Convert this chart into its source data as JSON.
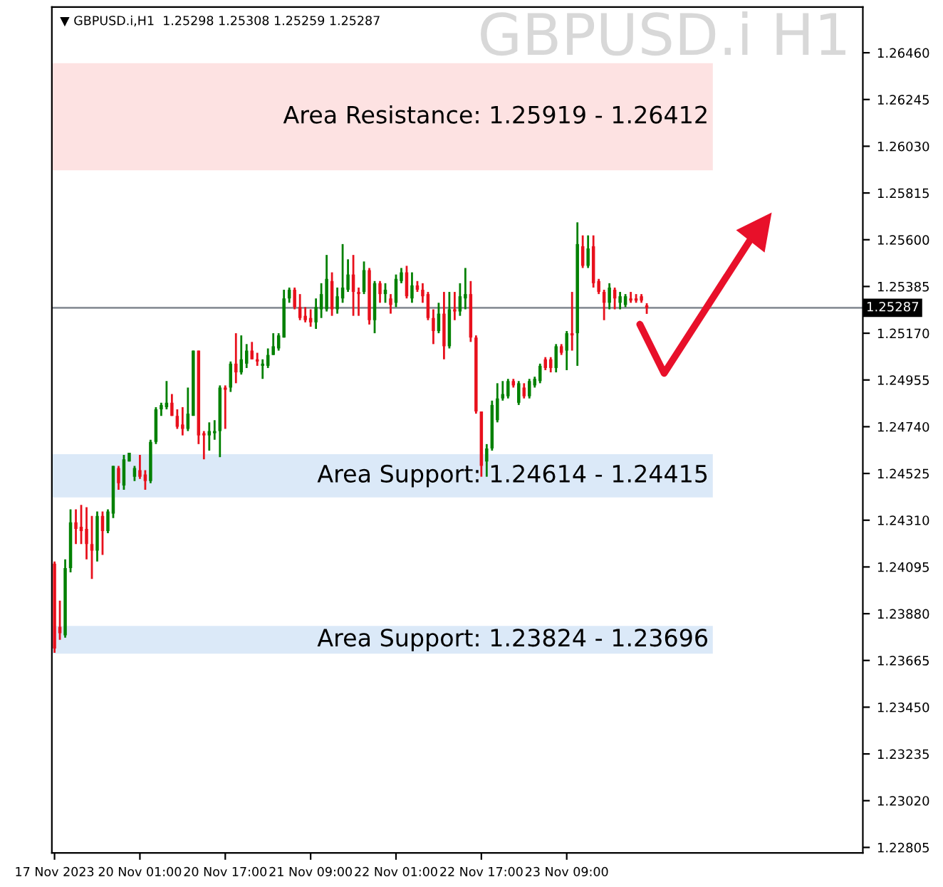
{
  "chart_data": {
    "type": "candlestick",
    "title": "GBPUSD.i H1",
    "subtitle": "▼ GBPUSD.i,H1  1.25298 1.25308 1.25259 1.25287",
    "categories": [
      "17 Nov 2023",
      null,
      null,
      null,
      null,
      null,
      null,
      null,
      null,
      null,
      null,
      null,
      null,
      null,
      null,
      null,
      "20 Nov 01:00",
      null,
      null,
      null,
      null,
      null,
      null,
      null,
      null,
      null,
      null,
      null,
      null,
      null,
      null,
      null,
      "20 Nov 17:00",
      null,
      null,
      null,
      null,
      null,
      null,
      null,
      null,
      null,
      null,
      null,
      null,
      null,
      null,
      null,
      "21 Nov 09:00",
      null,
      null,
      null,
      null,
      null,
      null,
      null,
      null,
      null,
      null,
      null,
      null,
      null,
      null,
      null,
      "22 Nov 01:00",
      null,
      null,
      null,
      null,
      null,
      null,
      null,
      null,
      null,
      null,
      null,
      null,
      null,
      null,
      null,
      "22 Nov 17:00",
      null,
      null,
      null,
      null,
      null,
      null,
      null,
      null,
      null,
      null,
      null,
      null,
      null,
      null,
      null,
      "23 Nov 09:00",
      null,
      null,
      null,
      null,
      null,
      null,
      null,
      null,
      null,
      null,
      null,
      null,
      null,
      null,
      null,
      null,
      null,
      null,
      null,
      null,
      null,
      null,
      null,
      null,
      null,
      null,
      null,
      null,
      null,
      null,
      null,
      null,
      null,
      null,
      null,
      null,
      null,
      null,
      null,
      null,
      null,
      null,
      null,
      null,
      null,
      null,
      null,
      null,
      null,
      null,
      null,
      null,
      null,
      null,
      null
    ],
    "ohlc": [
      [
        1.2411,
        1.2412,
        1.237,
        1.2372
      ],
      [
        1.2382,
        1.2394,
        1.2376,
        1.2379
      ],
      [
        1.2378,
        1.2413,
        1.2377,
        1.2409
      ],
      [
        1.2409,
        1.2436,
        1.2407,
        1.243
      ],
      [
        1.243,
        1.2436,
        1.242,
        1.2427
      ],
      [
        1.2428,
        1.2438,
        1.242,
        1.2426
      ],
      [
        1.2427,
        1.2437,
        1.2413,
        1.242
      ],
      [
        1.242,
        1.2433,
        1.2404,
        1.2417
      ],
      [
        1.2417,
        1.2435,
        1.2412,
        1.2433
      ],
      [
        1.2433,
        1.2435,
        1.2415,
        1.2426
      ],
      [
        1.2426,
        1.2436,
        1.2425,
        1.2435
      ],
      [
        1.2434,
        1.2456,
        1.2432,
        1.2456
      ],
      [
        1.2455,
        1.2456,
        1.2445,
        1.2448
      ],
      [
        1.2447,
        1.2461,
        1.2445,
        1.2459
      ],
      [
        1.2458,
        1.2462,
        1.2458,
        1.2462
      ],
      [
        1.2451,
        1.2456,
        1.2449,
        1.2455
      ],
      [
        1.2454,
        1.2461,
        1.245,
        1.2451
      ],
      [
        1.2452,
        1.2454,
        1.2445,
        1.2449
      ],
      [
        1.2449,
        1.2468,
        1.2448,
        1.2467
      ],
      [
        1.2467,
        1.2483,
        1.2466,
        1.2482
      ],
      [
        1.2482,
        1.2485,
        1.2479,
        1.2484
      ],
      [
        1.2483,
        1.2495,
        1.2482,
        1.2485
      ],
      [
        1.2485,
        1.2489,
        1.2479,
        1.2479
      ],
      [
        1.2479,
        1.2482,
        1.2473,
        1.2474
      ],
      [
        1.2475,
        1.2483,
        1.247,
        1.2473
      ],
      [
        1.2473,
        1.2492,
        1.2472,
        1.248
      ],
      [
        1.2479,
        1.2509,
        1.2479,
        1.2509
      ],
      [
        1.2509,
        1.2509,
        1.2466,
        1.247
      ],
      [
        1.2471,
        1.2472,
        1.2459,
        1.247
      ],
      [
        1.247,
        1.2476,
        1.2463,
        1.2472
      ],
      [
        1.2471,
        1.2477,
        1.2468,
        1.2472
      ],
      [
        1.2472,
        1.2493,
        1.246,
        1.2492
      ],
      [
        1.2492,
        1.2493,
        1.2473,
        1.2491
      ],
      [
        1.2492,
        1.2504,
        1.249,
        1.2503
      ],
      [
        1.2503,
        1.2517,
        1.2494,
        1.2499
      ],
      [
        1.2499,
        1.2516,
        1.2498,
        1.2505
      ],
      [
        1.2503,
        1.2512,
        1.2501,
        1.2509
      ],
      [
        1.2509,
        1.2513,
        1.2505,
        1.2505
      ],
      [
        1.2505,
        1.2508,
        1.2502,
        1.2504
      ],
      [
        1.2502,
        1.2505,
        1.2496,
        1.2503
      ],
      [
        1.2502,
        1.251,
        1.2501,
        1.2507
      ],
      [
        1.2507,
        1.2517,
        1.2507,
        1.2511
      ],
      [
        1.251,
        1.2517,
        1.2509,
        1.2516
      ],
      [
        1.2515,
        1.2537,
        1.2515,
        1.2533
      ],
      [
        1.2533,
        1.2538,
        1.2531,
        1.2537
      ],
      [
        1.2537,
        1.2538,
        1.2528,
        1.2529
      ],
      [
        1.2529,
        1.2535,
        1.2523,
        1.2524
      ],
      [
        1.2525,
        1.2529,
        1.2522,
        1.2523
      ],
      [
        1.2524,
        1.2528,
        1.252,
        1.2522
      ],
      [
        1.2522,
        1.2533,
        1.2519,
        1.2529
      ],
      [
        1.2528,
        1.254,
        1.2524,
        1.2535
      ],
      [
        1.2528,
        1.2553,
        1.2527,
        1.2542
      ],
      [
        1.2541,
        1.2545,
        1.2525,
        1.2528
      ],
      [
        1.2528,
        1.2538,
        1.2526,
        1.2534
      ],
      [
        1.2533,
        1.2558,
        1.2531,
        1.2538
      ],
      [
        1.2537,
        1.2551,
        1.2536,
        1.2544
      ],
      [
        1.2544,
        1.2553,
        1.2525,
        1.2536
      ],
      [
        1.2536,
        1.2538,
        1.2525,
        1.2535
      ],
      [
        1.2536,
        1.255,
        1.2535,
        1.2546
      ],
      [
        1.2546,
        1.2547,
        1.2521,
        1.2523
      ],
      [
        1.2523,
        1.2541,
        1.2517,
        1.254
      ],
      [
        1.254,
        1.2541,
        1.2531,
        1.2535
      ],
      [
        1.2535,
        1.254,
        1.2531,
        1.2537
      ],
      [
        1.2533,
        1.2535,
        1.2526,
        1.253
      ],
      [
        1.2531,
        1.2544,
        1.2529,
        1.2542
      ],
      [
        1.2541,
        1.2547,
        1.254,
        1.2545
      ],
      [
        1.2545,
        1.2548,
        1.2533,
        1.2534
      ],
      [
        1.2533,
        1.2545,
        1.2531,
        1.2539
      ],
      [
        1.2539,
        1.2541,
        1.2536,
        1.2537
      ],
      [
        1.2537,
        1.254,
        1.2531,
        1.2534
      ],
      [
        1.2535,
        1.2536,
        1.2523,
        1.2524
      ],
      [
        1.2524,
        1.2528,
        1.2512,
        1.2518
      ],
      [
        1.2518,
        1.2531,
        1.2517,
        1.2526
      ],
      [
        1.2526,
        1.2536,
        1.2505,
        1.2511
      ],
      [
        1.2511,
        1.2536,
        1.251,
        1.2528
      ],
      [
        1.2528,
        1.2536,
        1.2523,
        1.2527
      ],
      [
        1.2527,
        1.254,
        1.2525,
        1.2534
      ],
      [
        1.2533,
        1.2547,
        1.2528,
        1.2535
      ],
      [
        1.2535,
        1.2541,
        1.2513,
        1.2515
      ],
      [
        1.2515,
        1.2516,
        1.248,
        1.2481
      ],
      [
        1.2481,
        1.2481,
        1.2451,
        1.2456
      ],
      [
        1.2458,
        1.2466,
        1.2451,
        1.2464
      ],
      [
        1.2464,
        1.2486,
        1.2463,
        1.2484
      ],
      [
        1.2477,
        1.2494,
        1.2476,
        1.2487
      ],
      [
        1.2487,
        1.2495,
        1.2486,
        1.2489
      ],
      [
        1.2488,
        1.2496,
        1.2487,
        1.2495
      ],
      [
        1.2495,
        1.2496,
        1.2492,
        1.2493
      ],
      [
        1.2485,
        1.2495,
        1.2484,
        1.2494
      ],
      [
        1.2492,
        1.2494,
        1.2487,
        1.2488
      ],
      [
        1.2488,
        1.2496,
        1.2487,
        1.2495
      ],
      [
        1.2493,
        1.2497,
        1.2492,
        1.2496
      ],
      [
        1.2495,
        1.2503,
        1.2494,
        1.2502
      ],
      [
        1.2505,
        1.2506,
        1.25,
        1.2501
      ],
      [
        1.2505,
        1.2506,
        1.2499,
        1.2501
      ],
      [
        1.2501,
        1.2512,
        1.2499,
        1.2511
      ],
      [
        1.2511,
        1.2512,
        1.2507,
        1.2508
      ],
      [
        1.2509,
        1.2518,
        1.25,
        1.2517
      ],
      [
        1.2517,
        1.2536,
        1.2509,
        1.2516
      ],
      [
        1.2517,
        1.2568,
        1.2502,
        1.2558
      ],
      [
        1.2557,
        1.2562,
        1.2547,
        1.2548
      ],
      [
        1.2548,
        1.2562,
        1.2547,
        1.2556
      ],
      [
        1.2557,
        1.2562,
        1.2538,
        1.254
      ],
      [
        1.2541,
        1.2542,
        1.2535,
        1.2536
      ],
      [
        1.2536,
        1.2537,
        1.2523,
        1.2531
      ],
      [
        1.2531,
        1.254,
        1.2528,
        1.2538
      ],
      [
        1.2537,
        1.2538,
        1.2528,
        1.2533
      ],
      [
        1.2531,
        1.2536,
        1.2528,
        1.2534
      ],
      [
        1.253,
        1.2535,
        1.2529,
        1.2534
      ],
      [
        1.2533,
        1.2536,
        1.2531,
        1.2532
      ],
      [
        1.2533,
        1.2535,
        1.2531,
        1.2532
      ],
      [
        1.2534,
        1.2535,
        1.2531,
        1.2532
      ],
      [
        1.25298,
        1.25308,
        1.25259,
        1.25287
      ],
      null,
      null,
      null,
      null,
      null,
      null,
      null,
      null,
      null,
      null,
      null,
      null,
      null,
      null,
      null,
      null,
      null,
      null,
      null,
      null,
      null,
      null,
      null,
      null,
      null,
      null,
      null,
      null,
      null,
      null,
      null,
      null,
      null,
      null,
      null,
      null,
      null,
      null,
      null,
      null
    ],
    "colors": [
      "#e8101c",
      "#e8101c",
      "#008000",
      "#008000",
      "#e8101c",
      "#e8101c",
      "#e8101c",
      "#e8101c",
      "#008000",
      "#e8101c",
      "#008000",
      "#008000",
      "#e8101c",
      "#008000",
      "#008000",
      "#008000",
      "#e8101c",
      "#e8101c",
      "#008000",
      "#008000",
      "#008000",
      "#008000",
      "#e8101c",
      "#e8101c",
      "#e8101c",
      "#008000",
      "#008000",
      "#e8101c",
      "#e8101c",
      "#008000",
      "#008000",
      "#008000",
      "#e8101c",
      "#008000",
      "#e8101c",
      "#008000",
      "#008000",
      "#e8101c",
      "#e8101c",
      "#008000",
      "#008000",
      "#008000",
      "#008000",
      "#008000",
      "#008000",
      "#e8101c",
      "#e8101c",
      "#e8101c",
      "#e8101c",
      "#008000",
      "#008000",
      "#008000",
      "#e8101c",
      "#008000",
      "#008000",
      "#008000",
      "#e8101c",
      "#e8101c",
      "#008000",
      "#e8101c",
      "#008000",
      "#e8101c",
      "#008000",
      "#e8101c",
      "#008000",
      "#008000",
      "#e8101c",
      "#008000",
      "#e8101c",
      "#e8101c",
      "#e8101c",
      "#e8101c",
      "#008000",
      "#e8101c",
      "#008000",
      "#e8101c",
      "#008000",
      "#008000",
      "#e8101c",
      "#e8101c",
      "#e8101c",
      "#008000",
      "#008000",
      "#008000",
      "#008000",
      "#008000",
      "#e8101c",
      "#008000",
      "#e8101c",
      "#008000",
      "#008000",
      "#008000",
      "#e8101c",
      "#e8101c",
      "#008000",
      "#e8101c",
      "#008000",
      "#e8101c",
      "#008000",
      "#e8101c",
      "#008000",
      "#e8101c",
      "#e8101c",
      "#e8101c",
      "#008000",
      "#e8101c",
      "#008000",
      "#008000",
      "#e8101c",
      "#e8101c",
      "#e8101c",
      "#e8101c",
      null,
      null,
      null,
      null,
      null,
      null,
      null,
      null,
      null,
      null,
      null,
      null,
      null,
      null,
      null,
      null,
      null,
      null,
      null,
      null,
      null,
      null,
      null,
      null,
      null,
      null,
      null,
      null,
      null,
      null,
      null,
      null,
      null,
      null,
      null,
      null,
      null,
      null,
      null,
      null
    ],
    "ylim": [
      1.2278,
      1.2667
    ],
    "yticks": [
      {
        "value": 1.22805,
        "label": "1.22805"
      },
      {
        "value": 1.2302,
        "label": "1.23020"
      },
      {
        "value": 1.23235,
        "label": "1.23235"
      },
      {
        "value": 1.2345,
        "label": "1.23450"
      },
      {
        "value": 1.23665,
        "label": "1.23665"
      },
      {
        "value": 1.2388,
        "label": "1.23880"
      },
      {
        "value": 1.24095,
        "label": "1.24095"
      },
      {
        "value": 1.2431,
        "label": "1.24310"
      },
      {
        "value": 1.24525,
        "label": "1.24525"
      },
      {
        "value": 1.2474,
        "label": "1.24740"
      },
      {
        "value": 1.24955,
        "label": "1.24955"
      },
      {
        "value": 1.2517,
        "label": "1.25170"
      },
      {
        "value": 1.25385,
        "label": "1.25385"
      },
      {
        "value": 1.256,
        "label": "1.25600"
      },
      {
        "value": 1.25815,
        "label": "1.25815"
      },
      {
        "value": 1.2603,
        "label": "1.26030"
      },
      {
        "value": 1.26245,
        "label": "1.26245"
      },
      {
        "value": 1.2646,
        "label": "1.26460"
      }
    ],
    "bands": [
      {
        "axis": "y",
        "from": 1.25919,
        "to": 1.26412,
        "label": "Area Resistance: 1.25919 - 1.26412",
        "color": "#fde2e2"
      },
      {
        "axis": "y",
        "from": 1.24614,
        "to": 1.24415,
        "label": "Area Support: 1.24614 - 1.24415",
        "color": "#dbe9f8"
      },
      {
        "axis": "y",
        "from": 1.23824,
        "to": 1.23696,
        "label": "Area Support: 1.23824 - 1.23696",
        "color": "#dbe9f8"
      }
    ],
    "ref_lines": [
      {
        "axis": "y",
        "value": 1.25287,
        "label": "1.25287",
        "color": "#8a9098",
        "line_style": "solid"
      }
    ],
    "grid": false,
    "legend": false
  }
}
